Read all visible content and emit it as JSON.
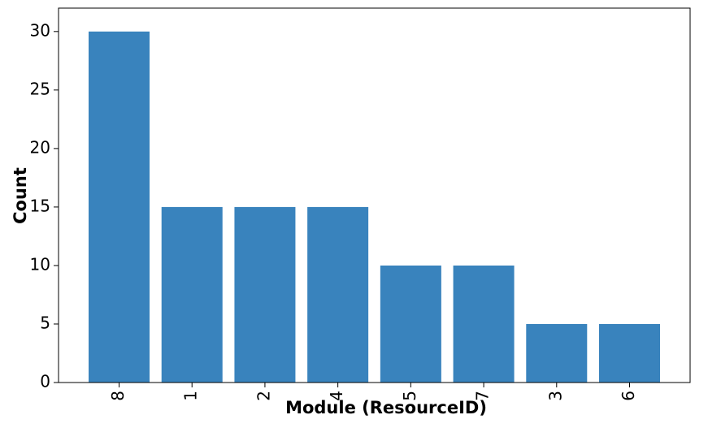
{
  "chart_data": {
    "type": "bar",
    "x_label": "Module (ResourceID)",
    "y_label": "Count",
    "categories": [
      "8",
      "1",
      "2",
      "4",
      "5",
      "7",
      "3",
      "6"
    ],
    "values": [
      30,
      15,
      15,
      15,
      10,
      10,
      5,
      5
    ],
    "color": "#3983bd",
    "ylim": [
      0,
      32
    ],
    "yticks": [
      0,
      5,
      10,
      15,
      20,
      25,
      30
    ],
    "grid": false
  }
}
